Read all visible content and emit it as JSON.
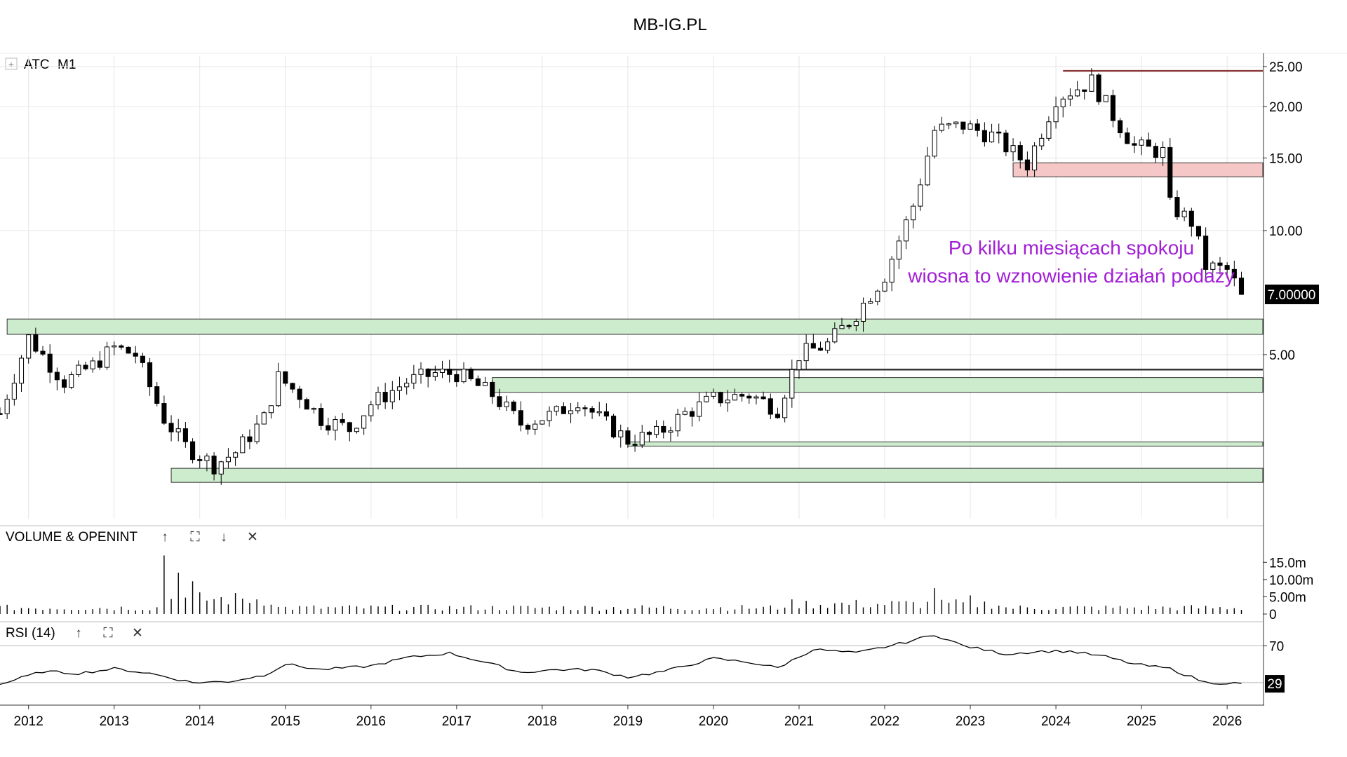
{
  "page_title": "MB-IG.PL",
  "main_panel": {
    "expand_glyph": "+",
    "symbol": "ATC",
    "interval": "M1",
    "last_price_label": "7.00000",
    "y_ticks": [
      {
        "value": 25,
        "label": "25.00"
      },
      {
        "value": 20,
        "label": "20.00"
      },
      {
        "value": 15,
        "label": "15.00"
      },
      {
        "value": 10,
        "label": "10.00"
      },
      {
        "value": 5,
        "label": "5.00"
      }
    ],
    "annotation_lines": [
      "Po kilku miesiącach spokoju",
      "wiosna to wznowienie działań podaży"
    ]
  },
  "volume_panel": {
    "label": "VOLUME & OPENINT",
    "up_glyph": "↑",
    "max_glyph": "⛶",
    "down_glyph": "↓",
    "close_glyph": "✕",
    "y_ticks": [
      {
        "value": 15,
        "label": "15.0m"
      },
      {
        "value": 10,
        "label": "10.00m"
      },
      {
        "value": 5,
        "label": "5.00m"
      },
      {
        "value": 0,
        "label": "0"
      }
    ]
  },
  "rsi_panel": {
    "label": "RSI (14)",
    "up_glyph": "↑",
    "max_glyph": "⛶",
    "close_glyph": "✕",
    "y_ticks": [
      {
        "value": 70,
        "label": "70"
      }
    ],
    "last_value_label": "29"
  },
  "x_axis": {
    "ticks": [
      "2012",
      "2013",
      "2014",
      "2015",
      "2016",
      "2017",
      "2018",
      "2019",
      "2020",
      "2021",
      "2022",
      "2023",
      "2024",
      "2025",
      "2026"
    ]
  },
  "colors": {
    "up_body": "#ffffff",
    "down_body": "#000000",
    "wick": "#000000",
    "support_zone": "#cdebcd",
    "resistance_zone": "#f6c7c7",
    "annotation_text": "#a21fd6",
    "grid": "#e6e6e6",
    "price_tag_bg": "#000000",
    "price_tag_text": "#ffffff"
  },
  "chart_data": {
    "type": "candlestick",
    "scale": "log",
    "x_range": [
      "2011-09",
      "2026-06"
    ],
    "y_range": [
      2.0,
      26.5
    ],
    "last_price": 7.0,
    "zones": [
      {
        "kind": "support",
        "from": "2011-10",
        "low": 5.6,
        "high": 6.1
      },
      {
        "kind": "support",
        "from": "2017-06",
        "low": 4.05,
        "high": 4.4
      },
      {
        "kind": "support",
        "from": "2019-01",
        "low": 3.0,
        "high": 3.07
      },
      {
        "kind": "support",
        "from": "2013-09",
        "low": 2.45,
        "high": 2.65
      },
      {
        "kind": "resistance",
        "from": "2023-07",
        "low": 13.5,
        "high": 14.6
      }
    ],
    "levels": [
      {
        "from": "2016-09",
        "value": 4.6,
        "color": "#333333"
      },
      {
        "from": "2024-02",
        "value": 24.4,
        "color": "#8b3a3a"
      }
    ],
    "anchors": [
      [
        "2011-09",
        3.6
      ],
      [
        "2012-01",
        5.5
      ],
      [
        "2012-06",
        4.3
      ],
      [
        "2012-10",
        4.7
      ],
      [
        "2013-01",
        5.2
      ],
      [
        "2013-04",
        5.0
      ],
      [
        "2013-08",
        3.5
      ],
      [
        "2013-11",
        3.0
      ],
      [
        "2014-03",
        2.7
      ],
      [
        "2014-06",
        2.9
      ],
      [
        "2014-10",
        3.5
      ],
      [
        "2014-12",
        4.4
      ],
      [
        "2015-03",
        4.0
      ],
      [
        "2015-06",
        3.5
      ],
      [
        "2015-10",
        3.3
      ],
      [
        "2016-01",
        3.8
      ],
      [
        "2016-06",
        4.3
      ],
      [
        "2016-10",
        4.5
      ],
      [
        "2017-01",
        4.5
      ],
      [
        "2017-06",
        4.0
      ],
      [
        "2017-10",
        3.4
      ],
      [
        "2018-03",
        3.6
      ],
      [
        "2018-06",
        3.9
      ],
      [
        "2018-09",
        3.5
      ],
      [
        "2019-01",
        3.1
      ],
      [
        "2019-05",
        3.2
      ],
      [
        "2019-09",
        3.6
      ],
      [
        "2020-01",
        3.9
      ],
      [
        "2020-06",
        4.0
      ],
      [
        "2020-10",
        3.7
      ],
      [
        "2021-01",
        5.0
      ],
      [
        "2021-05",
        5.3
      ],
      [
        "2021-09",
        6.3
      ],
      [
        "2022-01",
        7.8
      ],
      [
        "2022-05",
        11.5
      ],
      [
        "2022-08",
        17.5
      ],
      [
        "2022-12",
        18.0
      ],
      [
        "2023-04",
        17.0
      ],
      [
        "2023-09",
        14.5
      ],
      [
        "2024-01",
        21.0
      ],
      [
        "2024-06",
        23.0
      ],
      [
        "2024-09",
        19.0
      ],
      [
        "2024-12",
        16.0
      ],
      [
        "2025-04",
        15.5
      ],
      [
        "2025-05",
        11.5
      ],
      [
        "2025-08",
        10.5
      ],
      [
        "2025-10",
        8.2
      ],
      [
        "2026-01",
        8.0
      ],
      [
        "2026-03",
        7.0
      ]
    ],
    "volume": {
      "unit": "m",
      "peaks": [
        [
          "2013-08",
          17
        ],
        [
          "2013-10",
          12
        ],
        [
          "2013-12",
          9.5
        ],
        [
          "2022-08",
          7.5
        ],
        [
          "2023-01",
          5.4
        ]
      ],
      "base": 1.8
    },
    "rsi": {
      "period": 14,
      "ref_levels": [
        70,
        30
      ],
      "last": 29,
      "anchors": [
        [
          "2011-09",
          28
        ],
        [
          "2012-03",
          42
        ],
        [
          "2012-08",
          40
        ],
        [
          "2013-01",
          45
        ],
        [
          "2013-06",
          40
        ],
        [
          "2013-12",
          30
        ],
        [
          "2014-05",
          31
        ],
        [
          "2014-10",
          38
        ],
        [
          "2015-01",
          50
        ],
        [
          "2015-06",
          44
        ],
        [
          "2016-01",
          48
        ],
        [
          "2016-06",
          57
        ],
        [
          "2016-12",
          62
        ],
        [
          "2017-05",
          52
        ],
        [
          "2017-10",
          41
        ],
        [
          "2018-03",
          44
        ],
        [
          "2018-08",
          44
        ],
        [
          "2019-01",
          36
        ],
        [
          "2019-06",
          42
        ],
        [
          "2020-01",
          56
        ],
        [
          "2020-06",
          52
        ],
        [
          "2020-10",
          46
        ],
        [
          "2021-03",
          66
        ],
        [
          "2021-09",
          62
        ],
        [
          "2022-03",
          72
        ],
        [
          "2022-08",
          82
        ],
        [
          "2022-12",
          70
        ],
        [
          "2023-06",
          61
        ],
        [
          "2023-11",
          64
        ],
        [
          "2024-03",
          64
        ],
        [
          "2024-08",
          58
        ],
        [
          "2024-12",
          50
        ],
        [
          "2025-05",
          45
        ],
        [
          "2025-10",
          30
        ],
        [
          "2026-03",
          29
        ]
      ]
    }
  }
}
